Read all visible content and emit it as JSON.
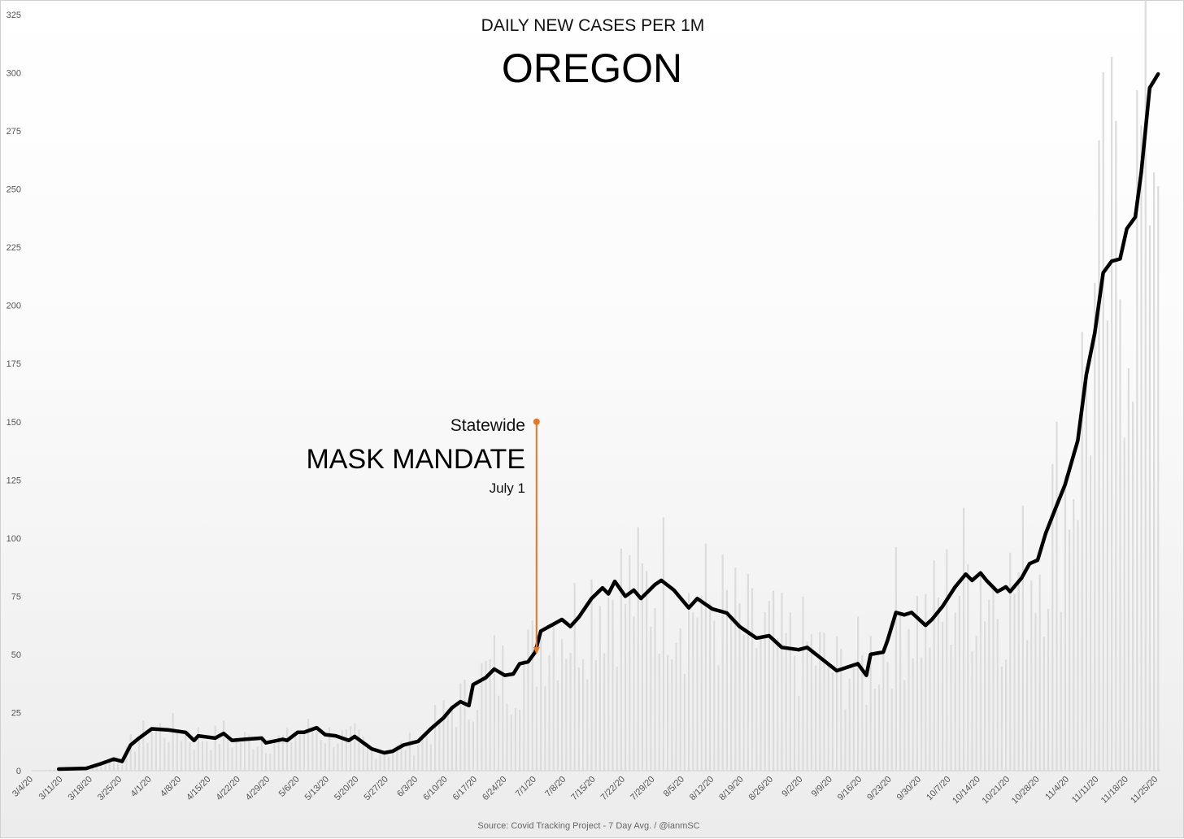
{
  "chart_data": {
    "type": "line",
    "title": "DAILY NEW CASES PER 1M",
    "subtitle": "OREGON",
    "xlabel": "",
    "ylabel": "",
    "ylim": [
      0,
      325
    ],
    "yticks": [
      0,
      25,
      50,
      75,
      100,
      125,
      150,
      175,
      200,
      225,
      250,
      275,
      300,
      325
    ],
    "x_start_date": "3/4/20",
    "x_days": 266,
    "xtick_labels": [
      "3/4/20",
      "3/11/20",
      "3/18/20",
      "3/25/20",
      "4/1/20",
      "4/8/20",
      "4/15/20",
      "4/22/20",
      "4/29/20",
      "5/6/20",
      "5/13/20",
      "5/20/20",
      "5/27/20",
      "6/3/20",
      "6/10/20",
      "6/17/20",
      "6/24/20",
      "7/1/20",
      "7/8/20",
      "7/15/20",
      "7/22/20",
      "7/29/20",
      "8/5/20",
      "8/12/20",
      "8/19/20",
      "8/26/20",
      "9/2/20",
      "9/9/20",
      "9/16/20",
      "9/23/20",
      "9/30/20",
      "10/7/20",
      "10/14/20",
      "10/21/20",
      "10/28/20",
      "11/4/20",
      "11/11/20",
      "11/18/20",
      "11/25/20"
    ],
    "series": [
      {
        "name": "7 Day Avg.",
        "color": "#000000",
        "points_day_value": [
          [
            6,
            0.7
          ],
          [
            12.5,
            1
          ],
          [
            16,
            3
          ],
          [
            19,
            5
          ],
          [
            21,
            4
          ],
          [
            23,
            11
          ],
          [
            25,
            14
          ],
          [
            28,
            18
          ],
          [
            32,
            17.5
          ],
          [
            36,
            16.5
          ],
          [
            38,
            13
          ],
          [
            39,
            15
          ],
          [
            43,
            14
          ],
          [
            45,
            16
          ],
          [
            47,
            13
          ],
          [
            50,
            13.5
          ],
          [
            54,
            14
          ],
          [
            55,
            12
          ],
          [
            59,
            13.5
          ],
          [
            60,
            13
          ],
          [
            62.5,
            16.5
          ],
          [
            64,
            16.5
          ],
          [
            67,
            18.5
          ],
          [
            69,
            15.5
          ],
          [
            71.5,
            15
          ],
          [
            74.6,
            13
          ],
          [
            76,
            14.7
          ],
          [
            80,
            9.4
          ],
          [
            83,
            7.7
          ],
          [
            85,
            8.4
          ],
          [
            87.5,
            11
          ],
          [
            91,
            12.6
          ],
          [
            94,
            18
          ],
          [
            97,
            22.7
          ],
          [
            99,
            27
          ],
          [
            101,
            29.7
          ],
          [
            103,
            28
          ],
          [
            104,
            37
          ],
          [
            107,
            40
          ],
          [
            109,
            43.7
          ],
          [
            111.5,
            41
          ],
          [
            113.5,
            41.6
          ],
          [
            115,
            46
          ],
          [
            117,
            46.8
          ],
          [
            118.7,
            51
          ],
          [
            120,
            60
          ],
          [
            122,
            62
          ],
          [
            125,
            65
          ],
          [
            127,
            62
          ],
          [
            129,
            66
          ],
          [
            132,
            74
          ],
          [
            134.6,
            78.6
          ],
          [
            136,
            76
          ],
          [
            137.5,
            81.4
          ],
          [
            140,
            75
          ],
          [
            142,
            77.6
          ],
          [
            143.7,
            74
          ],
          [
            147,
            80
          ],
          [
            148.5,
            81.8
          ],
          [
            151.5,
            77.6
          ],
          [
            155,
            70
          ],
          [
            157,
            74
          ],
          [
            160.6,
            69.5
          ],
          [
            164,
            67.8
          ],
          [
            167,
            62
          ],
          [
            171,
            57
          ],
          [
            174,
            58
          ],
          [
            177,
            53
          ],
          [
            181,
            52
          ],
          [
            183,
            53
          ],
          [
            186.5,
            48
          ],
          [
            190,
            43
          ],
          [
            195,
            46
          ],
          [
            197,
            41
          ],
          [
            198,
            50
          ],
          [
            201,
            51
          ],
          [
            202,
            56
          ],
          [
            204,
            68
          ],
          [
            206,
            67
          ],
          [
            207.7,
            68
          ],
          [
            211,
            62.5
          ],
          [
            212.5,
            65
          ],
          [
            215,
            70.6
          ],
          [
            218,
            79
          ],
          [
            220.5,
            84.5
          ],
          [
            222,
            81.8
          ],
          [
            224,
            85
          ],
          [
            225.4,
            81.8
          ],
          [
            228,
            77
          ],
          [
            230,
            79
          ],
          [
            231,
            77
          ],
          [
            233.7,
            82.8
          ],
          [
            235.6,
            89
          ],
          [
            237.5,
            90.5
          ],
          [
            239.4,
            102
          ],
          [
            242,
            114
          ],
          [
            244,
            123
          ],
          [
            247,
            142
          ],
          [
            249,
            170
          ],
          [
            251,
            188
          ],
          [
            253,
            214
          ],
          [
            255,
            219
          ],
          [
            257,
            220
          ],
          [
            258.6,
            233
          ],
          [
            260.6,
            238
          ],
          [
            262,
            257
          ],
          [
            264,
            293.5
          ],
          [
            266,
            299.5
          ]
        ]
      },
      {
        "name": "Daily",
        "color": "#dcdcdc",
        "style": "bars"
      }
    ],
    "annotation": {
      "line1": "Statewide",
      "line2": "MASK MANDATE",
      "line3": "July 1",
      "date_day": 119,
      "from_value": 150,
      "to_value": 50,
      "color": "#E87722"
    },
    "source": "Source: Covid Tracking Project - 7 Day Avg. / @ianmSC"
  }
}
